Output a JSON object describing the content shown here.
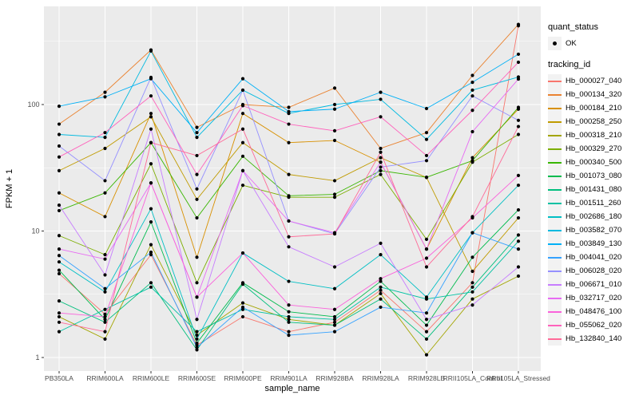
{
  "figure": {
    "bg": "#FFFFFF",
    "panel_bg": "#EBEBEB",
    "grid_color": "#FFFFFF",
    "tick_color": "#333333",
    "tick_label_color": "#4D4D4D",
    "axis_title_color": "#000000",
    "point_color": "#000000"
  },
  "legend": {
    "quant_status": {
      "title": "quant_status",
      "items": [
        {
          "label": "OK",
          "marker": "black-point"
        }
      ]
    },
    "tracking_id": {
      "title": "tracking_id"
    }
  },
  "chart_data": {
    "type": "line",
    "title": "",
    "xlabel": "sample_name",
    "ylabel": "FPKM + 1",
    "y_scale": "log10",
    "ylim": [
      0.79,
      580
    ],
    "y_major_ticks": [
      1,
      10,
      100
    ],
    "y_minor_ticks": [
      3.162,
      31.623,
      316.228
    ],
    "grid": true,
    "legend_position": "right",
    "point_marker": "black-point",
    "categories": [
      "PB350LA",
      "RRIM600LA",
      "RRIM600LE",
      "RRIM600SE",
      "RRIM600PE",
      "RRIM901LA",
      "RRIM928BA",
      "RRIM928LA",
      "RRIM928LB",
      "RRII105LA_Control",
      "RRII105LA_Stressed"
    ],
    "series": [
      {
        "name": "Hb_000027_040",
        "color": "#F8766D",
        "values": [
          4.6,
          2.2,
          6.5,
          1.25,
          2.1,
          1.6,
          1.9,
          3.4,
          1.6,
          3.9,
          420
        ]
      },
      {
        "name": "Hb_000134_320",
        "color": "#EA8331",
        "values": [
          70,
          125,
          270,
          66,
          100,
          95,
          135,
          45,
          60,
          170,
          430
        ]
      },
      {
        "name": "Hb_000184_210",
        "color": "#D89000",
        "values": [
          20,
          13,
          85,
          6.2,
          85,
          50,
          52,
          35,
          7.2,
          38,
          92
        ]
      },
      {
        "name": "Hb_000258_250",
        "color": "#C09B00",
        "values": [
          30,
          45,
          80,
          17.8,
          50,
          28,
          25,
          38,
          26.5,
          4.8,
          12.7
        ]
      },
      {
        "name": "Hb_000318_210",
        "color": "#A3A500",
        "values": [
          2.1,
          1.4,
          7.8,
          1.5,
          2.7,
          2.0,
          1.8,
          3.2,
          1.05,
          2.9,
          4.4
        ]
      },
      {
        "name": "Hb_000329_270",
        "color": "#7CAE00",
        "values": [
          9.2,
          6.5,
          34,
          3.9,
          23,
          18.5,
          18.5,
          28,
          8.6,
          35,
          58
        ]
      },
      {
        "name": "Hb_000340_500",
        "color": "#39B600",
        "values": [
          14.5,
          20,
          50,
          12.7,
          39,
          19,
          19.5,
          30,
          26.6,
          36,
          95
        ]
      },
      {
        "name": "Hb_001073_080",
        "color": "#00BB4E",
        "values": [
          4.9,
          2.0,
          11.8,
          1.3,
          3.9,
          2.3,
          2.1,
          4.0,
          1.8,
          6.2,
          14.7
        ]
      },
      {
        "name": "Hb_001431_080",
        "color": "#00BF7D",
        "values": [
          2.8,
          1.9,
          3.9,
          1.15,
          3.8,
          1.9,
          1.8,
          2.9,
          1.4,
          3.6,
          9.3
        ]
      },
      {
        "name": "Hb_001511_260",
        "color": "#00C1A3",
        "values": [
          1.6,
          2.4,
          3.6,
          1.6,
          2.4,
          2.1,
          2.0,
          3.6,
          2.9,
          3.3,
          8.3
        ]
      },
      {
        "name": "Hb_002686_180",
        "color": "#00BFC4",
        "values": [
          5.7,
          3.3,
          15,
          1.4,
          6.7,
          4.0,
          3.5,
          6.5,
          3.0,
          9.7,
          23
        ]
      },
      {
        "name": "Hb_003582_070",
        "color": "#00BAE0",
        "values": [
          58,
          55,
          265,
          55,
          130,
          85,
          100,
          110,
          53,
          130,
          165
        ]
      },
      {
        "name": "Hb_003849_130",
        "color": "#00B0F6",
        "values": [
          97,
          115,
          160,
          60,
          160,
          88,
          92,
          125,
          93,
          150,
          250
        ]
      },
      {
        "name": "Hb_004041_020",
        "color": "#35A2FF",
        "values": [
          6.4,
          3.5,
          6.8,
          1.2,
          2.5,
          1.5,
          1.6,
          2.5,
          2.25,
          9.7,
          7.2
        ]
      },
      {
        "name": "Hb_006028_020",
        "color": "#9590FF",
        "values": [
          47,
          25,
          164,
          21.5,
          130,
          12,
          9.5,
          32,
          36,
          117,
          75
        ]
      },
      {
        "name": "Hb_006671_010",
        "color": "#C77CFF",
        "values": [
          16,
          4.5,
          64,
          2.0,
          30,
          7.5,
          5.2,
          8.0,
          2.0,
          2.6,
          5.2
        ]
      },
      {
        "name": "Hb_032717_020",
        "color": "#E76BF3",
        "values": [
          7.2,
          6.0,
          24,
          3.0,
          30,
          12,
          9.7,
          35,
          7.2,
          61,
          159
        ]
      },
      {
        "name": "Hb_048476_100",
        "color": "#FA62DB",
        "values": [
          2.25,
          2.1,
          24,
          3.0,
          6.7,
          2.6,
          2.4,
          4.2,
          6.1,
          12.7,
          27.5
        ]
      },
      {
        "name": "Hb_055062_020",
        "color": "#FF62BC",
        "values": [
          38.5,
          60,
          117,
          28,
          98,
          70,
          62,
          80,
          39.5,
          90,
          216
        ]
      },
      {
        "name": "Hb_132840_140",
        "color": "#FF6A98",
        "values": [
          1.9,
          1.6,
          50,
          39.5,
          64,
          9.0,
          9.5,
          42,
          5.2,
          13,
          67
        ]
      }
    ]
  }
}
